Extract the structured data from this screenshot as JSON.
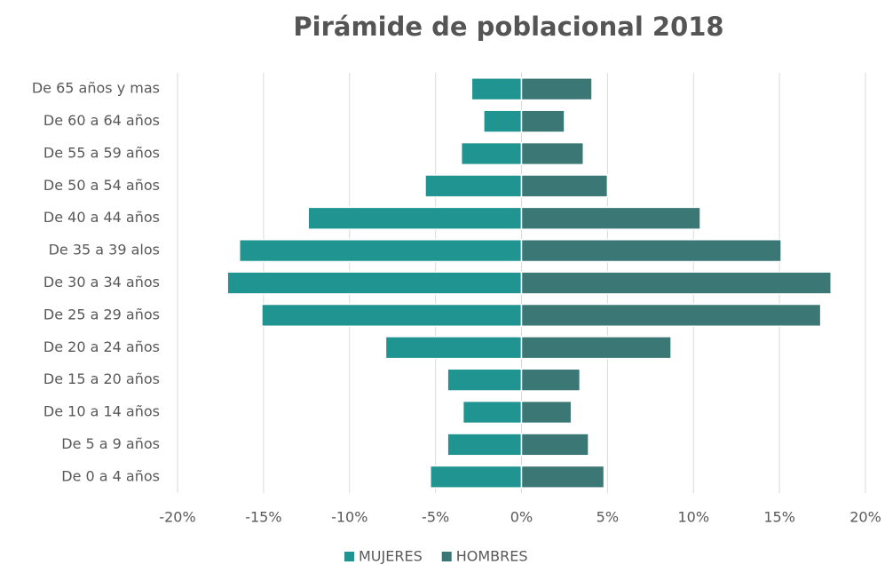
{
  "chart_data": {
    "type": "bar",
    "orientation": "horizontal",
    "title": "Pirámide de poblacional 2018",
    "categories": [
      "De 65 años y mas",
      "De 60 a 64 años",
      "De 55 a 59 años",
      "De 50 a 54 años",
      "De 40 a 44 años",
      "De 35 a 39 alos",
      "De 30 a 34 años",
      "De 25 a 29 años",
      "De 20 a 24 años",
      "De 15 a 20 años",
      "De 10 a 14 años",
      "De 5 a 9 años",
      "De 0 a  4 años"
    ],
    "series": [
      {
        "name": "MUJERES",
        "color": "#1f9490",
        "values": [
          -2.9,
          -2.2,
          -3.5,
          -5.6,
          -12.4,
          -16.4,
          -17.1,
          -15.1,
          -7.9,
          -4.3,
          -3.4,
          -4.3,
          -5.3
        ]
      },
      {
        "name": "HOMBRES",
        "color": "#3a7775",
        "values": [
          4.1,
          2.5,
          3.6,
          5.0,
          10.4,
          15.1,
          18.0,
          17.4,
          8.7,
          3.4,
          2.9,
          3.9,
          4.8
        ]
      }
    ],
    "xlim": [
      -20,
      20
    ],
    "xticks": [
      {
        "value": -20,
        "label": "-20%"
      },
      {
        "value": -15,
        "label": "-15%"
      },
      {
        "value": -10,
        "label": "-10%"
      },
      {
        "value": -5,
        "label": "-5%"
      },
      {
        "value": 0,
        "label": "0%"
      },
      {
        "value": 5,
        "label": "5%"
      },
      {
        "value": 10,
        "label": "10%"
      },
      {
        "value": 15,
        "label": "15%"
      },
      {
        "value": 20,
        "label": "20%"
      }
    ],
    "grid": true,
    "legend": "bottom"
  }
}
